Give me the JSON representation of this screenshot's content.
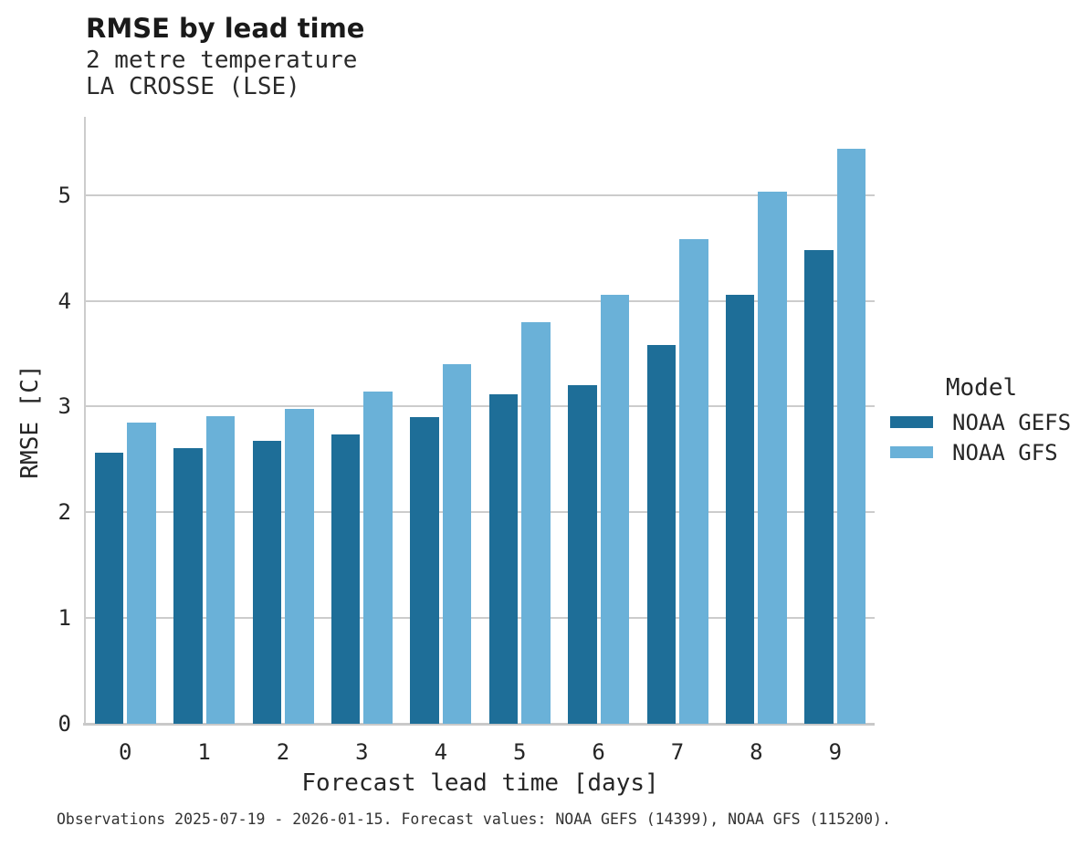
{
  "header": {
    "title": "RMSE by lead time",
    "subtitle_line1": "2 metre temperature",
    "subtitle_line2": "LA CROSSE (LSE)"
  },
  "legend": {
    "title": "Model",
    "items": [
      {
        "label": "NOAA GEFS",
        "color": "#1e6e98"
      },
      {
        "label": "NOAA GFS",
        "color": "#6ab1d8"
      }
    ]
  },
  "footer": {
    "text": "Observations 2025-07-19 - 2026-01-15. Forecast values: NOAA GEFS (14399), NOAA GFS (115200)."
  },
  "chart_data": {
    "type": "bar",
    "grouping": "grouped",
    "title": "RMSE by lead time",
    "subtitle": [
      "2 metre temperature",
      "LA CROSSE (LSE)"
    ],
    "xlabel": "Forecast lead time [days]",
    "ylabel": "RMSE [C]",
    "categories": [
      "0",
      "1",
      "2",
      "3",
      "4",
      "5",
      "6",
      "7",
      "8",
      "9"
    ],
    "yticks": [
      0,
      1,
      2,
      3,
      4,
      5
    ],
    "ylim": [
      0,
      5.74
    ],
    "grid": "horizontal-only",
    "legend_title": "Model",
    "legend_position": "right-center",
    "series": [
      {
        "name": "NOAA GEFS",
        "color": "#1e6e98",
        "values": [
          2.56,
          2.61,
          2.68,
          2.74,
          2.9,
          3.12,
          3.2,
          3.58,
          4.06,
          4.48
        ]
      },
      {
        "name": "NOAA GFS",
        "color": "#6ab1d8",
        "values": [
          2.85,
          2.91,
          2.98,
          3.14,
          3.4,
          3.8,
          4.06,
          4.58,
          5.03,
          5.44
        ]
      }
    ],
    "colors": {
      "gridline": "#cccccc",
      "axis": "#c9c9c9",
      "text": "#262626"
    }
  }
}
